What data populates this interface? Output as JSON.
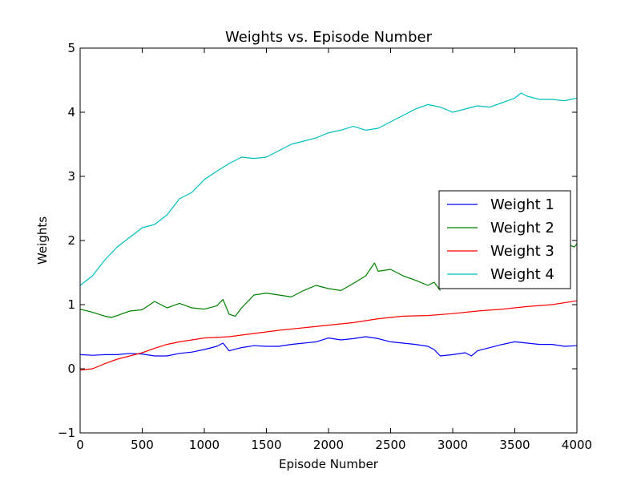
{
  "chart_data": {
    "type": "line",
    "title": "Weights vs. Episode Number",
    "xlabel": "Episode Number",
    "ylabel": "Weights",
    "xlim": [
      0,
      4000
    ],
    "ylim": [
      -1,
      5
    ],
    "xticks": [
      "0",
      "500",
      "1000",
      "1500",
      "2000",
      "2500",
      "3000",
      "3500",
      "4000"
    ],
    "yticks": [
      "−1",
      "0",
      "1",
      "2",
      "3",
      "4",
      "5"
    ],
    "grid": false,
    "legend_position": "center-right",
    "series": [
      {
        "name": "Weight 1",
        "color": "#0000ff",
        "x": [
          0,
          100,
          200,
          300,
          400,
          500,
          600,
          700,
          800,
          900,
          1000,
          1100,
          1150,
          1200,
          1300,
          1400,
          1500,
          1600,
          1700,
          1800,
          1900,
          2000,
          2100,
          2200,
          2300,
          2400,
          2500,
          2600,
          2700,
          2800,
          2850,
          2900,
          3000,
          3100,
          3150,
          3200,
          3300,
          3400,
          3500,
          3600,
          3700,
          3800,
          3900,
          4000
        ],
        "y": [
          0.22,
          0.21,
          0.22,
          0.22,
          0.24,
          0.23,
          0.2,
          0.2,
          0.24,
          0.26,
          0.3,
          0.35,
          0.4,
          0.28,
          0.33,
          0.36,
          0.35,
          0.35,
          0.38,
          0.4,
          0.42,
          0.48,
          0.45,
          0.47,
          0.5,
          0.47,
          0.42,
          0.4,
          0.38,
          0.35,
          0.3,
          0.2,
          0.22,
          0.25,
          0.2,
          0.28,
          0.33,
          0.38,
          0.42,
          0.4,
          0.38,
          0.38,
          0.35,
          0.36
        ]
      },
      {
        "name": "Weight 2",
        "color": "#008000",
        "x": [
          0,
          100,
          200,
          250,
          300,
          400,
          500,
          600,
          700,
          800,
          900,
          1000,
          1100,
          1150,
          1200,
          1250,
          1300,
          1400,
          1500,
          1600,
          1700,
          1800,
          1900,
          2000,
          2100,
          2200,
          2300,
          2370,
          2400,
          2500,
          2600,
          2700,
          2800,
          2850,
          2900
        ],
        "y": [
          0.93,
          0.88,
          0.82,
          0.8,
          0.83,
          0.9,
          0.92,
          1.05,
          0.95,
          1.02,
          0.95,
          0.93,
          0.98,
          1.08,
          0.85,
          0.82,
          0.95,
          1.15,
          1.18,
          1.15,
          1.12,
          1.22,
          1.3,
          1.25,
          1.22,
          1.33,
          1.45,
          1.65,
          1.52,
          1.55,
          1.45,
          1.38,
          1.3,
          1.35,
          1.22
        ]
      },
      {
        "name": "Weight 2 (right segment)",
        "color": "#008000",
        "x": [
          3920,
          3950,
          3980,
          4000
        ],
        "y": [
          1.88,
          1.92,
          1.9,
          1.95
        ]
      },
      {
        "name": "Weight 3",
        "color": "#ff0000",
        "x": [
          0,
          100,
          200,
          300,
          400,
          500,
          600,
          700,
          800,
          900,
          1000,
          1200,
          1400,
          1600,
          1800,
          2000,
          2200,
          2400,
          2600,
          2800,
          3000,
          3200,
          3400,
          3600,
          3800,
          4000
        ],
        "y": [
          -0.02,
          0.0,
          0.08,
          0.15,
          0.2,
          0.25,
          0.32,
          0.38,
          0.42,
          0.45,
          0.48,
          0.5,
          0.55,
          0.6,
          0.64,
          0.68,
          0.72,
          0.78,
          0.82,
          0.83,
          0.86,
          0.9,
          0.93,
          0.97,
          1.0,
          1.06
        ]
      },
      {
        "name": "Weight 4",
        "color": "#00bfbf",
        "x": [
          0,
          100,
          200,
          300,
          400,
          500,
          600,
          700,
          800,
          900,
          1000,
          1100,
          1200,
          1300,
          1400,
          1500,
          1600,
          1700,
          1800,
          1900,
          2000,
          2100,
          2200,
          2300,
          2400,
          2500,
          2600,
          2700,
          2800,
          2900,
          3000,
          3100,
          3200,
          3300,
          3400,
          3500,
          3550,
          3600,
          3700,
          3800,
          3900,
          4000
        ],
        "y": [
          1.3,
          1.45,
          1.7,
          1.9,
          2.05,
          2.2,
          2.25,
          2.4,
          2.65,
          2.75,
          2.95,
          3.08,
          3.2,
          3.3,
          3.28,
          3.3,
          3.4,
          3.5,
          3.55,
          3.6,
          3.68,
          3.72,
          3.78,
          3.72,
          3.75,
          3.85,
          3.95,
          4.05,
          4.12,
          4.08,
          4.0,
          4.05,
          4.1,
          4.08,
          4.15,
          4.22,
          4.3,
          4.25,
          4.2,
          4.2,
          4.18,
          4.22
        ]
      }
    ],
    "legend": [
      {
        "label": "Weight 1",
        "color": "#0000ff"
      },
      {
        "label": "Weight 2",
        "color": "#008000"
      },
      {
        "label": "Weight 3",
        "color": "#ff0000"
      },
      {
        "label": "Weight 4",
        "color": "#00bfbf"
      }
    ]
  }
}
